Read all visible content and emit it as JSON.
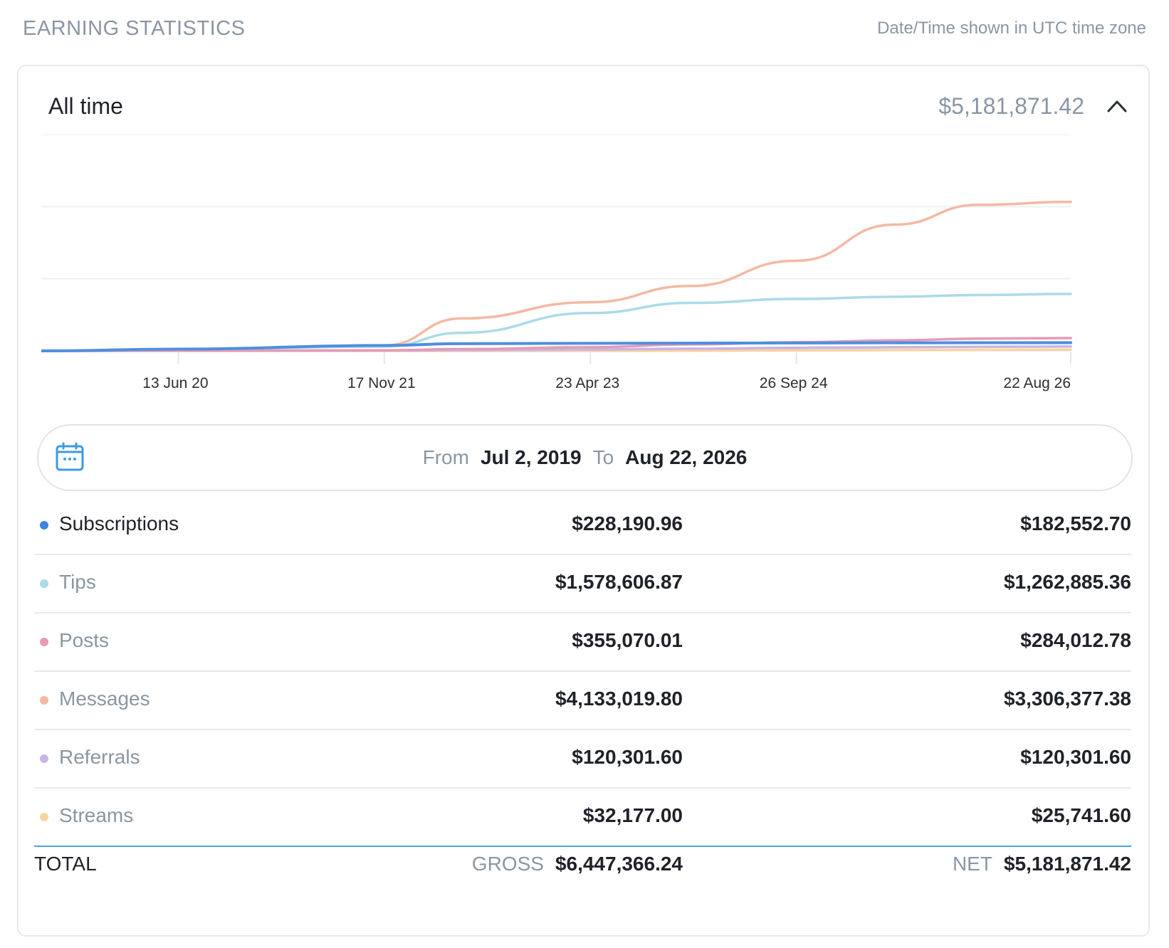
{
  "header": {
    "title": "EARNING STATISTICS",
    "timezone_note": "Date/Time shown in UTC time zone"
  },
  "card": {
    "period_label": "All time",
    "total": "$5,181,871.42",
    "collapse_icon": "chevron-up-icon"
  },
  "chart_data": {
    "type": "line",
    "x_ticks": [
      "13 Jun 20",
      "17 Nov 21",
      "23 Apr 23",
      "26 Sep 24",
      "22 Aug 26"
    ],
    "x": [
      "2019-07-02",
      "2020-06-13",
      "2021-11-17",
      "2022-06-01",
      "2023-04-23",
      "2024-01-01",
      "2024-09-26",
      "2025-06-01",
      "2026-01-01",
      "2026-08-22"
    ],
    "grid": true,
    "series": [
      {
        "name": "Messages",
        "color": "#f5b8a3",
        "values": [
          0,
          50000,
          150000,
          900000,
          1350000,
          1800000,
          2500000,
          3500000,
          4050000,
          4133020
        ]
      },
      {
        "name": "Tips",
        "color": "#aadbe8",
        "values": [
          0,
          50000,
          120000,
          500000,
          1050000,
          1330000,
          1440000,
          1500000,
          1550000,
          1578607
        ]
      },
      {
        "name": "Posts",
        "color": "#e69ab7",
        "values": [
          0,
          5000,
          15000,
          50000,
          100000,
          180000,
          240000,
          290000,
          340000,
          355070
        ]
      },
      {
        "name": "Subscriptions",
        "color": "#4d8fe0",
        "values": [
          0,
          50000,
          150000,
          200000,
          210000,
          215000,
          220000,
          224000,
          227000,
          228191
        ]
      },
      {
        "name": "Referrals",
        "color": "#c7b6e3",
        "values": [
          0,
          2000,
          8000,
          20000,
          40000,
          60000,
          85000,
          100000,
          112000,
          120302
        ]
      },
      {
        "name": "Streams",
        "color": "#f9d3a0",
        "values": [
          0,
          0,
          0,
          0,
          0,
          5000,
          15000,
          25000,
          30000,
          32177
        ]
      }
    ],
    "ylim": [
      0,
      6000000
    ]
  },
  "date_range": {
    "icon": "calendar-icon",
    "from_label": "From",
    "from_value": "Jul 2, 2019",
    "to_label": "To",
    "to_value": "Aug 22, 2026"
  },
  "rows": [
    {
      "name": "Subscriptions",
      "color": "#3d85e0",
      "gross": "$228,190.96",
      "net": "$182,552.70",
      "active": true
    },
    {
      "name": "Tips",
      "color": "#aadbe8",
      "gross": "$1,578,606.87",
      "net": "$1,262,885.36",
      "active": false
    },
    {
      "name": "Posts",
      "color": "#e69ab7",
      "gross": "$355,070.01",
      "net": "$284,012.78",
      "active": false
    },
    {
      "name": "Messages",
      "color": "#f5b8a3",
      "gross": "$4,133,019.80",
      "net": "$3,306,377.38",
      "active": false
    },
    {
      "name": "Referrals",
      "color": "#c7b6e3",
      "gross": "$120,301.60",
      "net": "$120,301.60",
      "active": false
    },
    {
      "name": "Streams",
      "color": "#f9d3a0",
      "gross": "$32,177.00",
      "net": "$25,741.60",
      "active": false
    }
  ],
  "totals": {
    "label": "TOTAL",
    "gross_label": "GROSS",
    "gross_value": "$6,447,366.24",
    "net_label": "NET",
    "net_value": "$5,181,871.42"
  }
}
